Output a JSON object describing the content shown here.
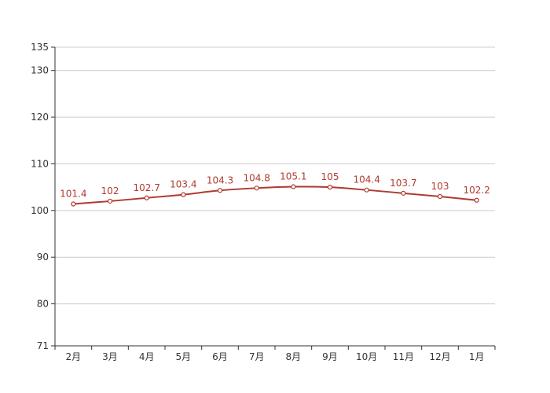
{
  "chart_data": {
    "type": "line",
    "categories": [
      "2月",
      "3月",
      "4月",
      "5月",
      "6月",
      "7月",
      "8月",
      "9月",
      "10月",
      "11月",
      "12月",
      "1月"
    ],
    "series": [
      {
        "values": [
          101.4,
          102,
          102.7,
          103.4,
          104.3,
          104.8,
          105.1,
          105,
          104.4,
          103.7,
          103,
          102.2
        ],
        "color": "#b03a2e",
        "data_labels": true
      }
    ],
    "y_ticks": [
      71,
      80,
      90,
      100,
      110,
      120,
      130,
      135
    ],
    "ylim": [
      71,
      135
    ],
    "grid": true,
    "smooth": true
  }
}
